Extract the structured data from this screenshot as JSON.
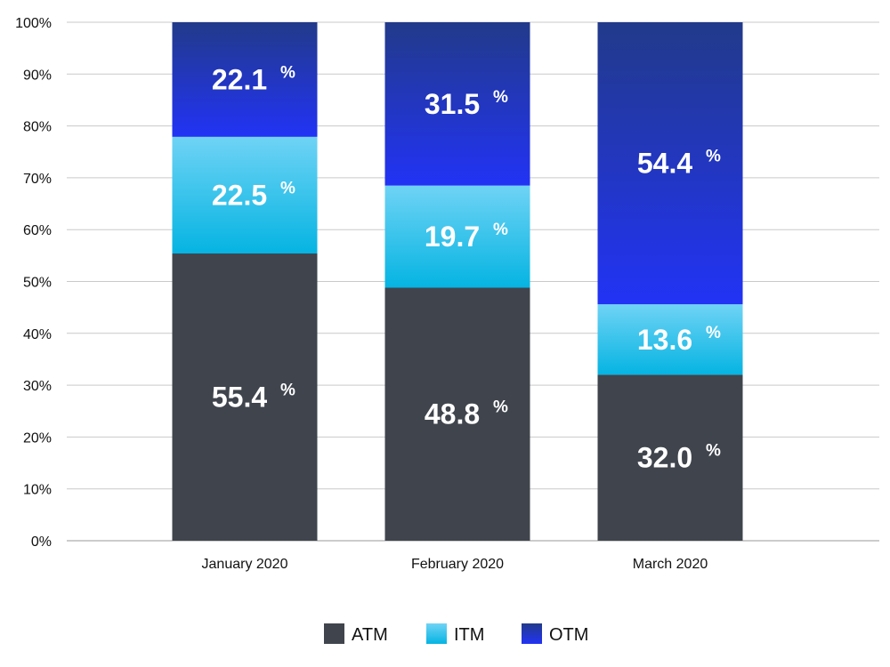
{
  "chart_data": {
    "type": "bar",
    "stacked": true,
    "categories": [
      "January 2020",
      "February 2020",
      "March 2020"
    ],
    "series": [
      {
        "name": "ATM",
        "values": [
          55.4,
          48.8,
          32.0
        ],
        "labels": [
          "55.4",
          "48.8",
          "32.0"
        ],
        "color": "#3f444d"
      },
      {
        "name": "ITM",
        "values": [
          22.5,
          19.7,
          13.6
        ],
        "labels": [
          "22.5",
          "19.7",
          "13.6"
        ],
        "color_top": "#6fd3f5",
        "color_bottom": "#05b4e2"
      },
      {
        "name": "OTM",
        "values": [
          22.1,
          31.5,
          54.4
        ],
        "labels": [
          "22.1",
          "31.5",
          "54.4"
        ],
        "color_top": "#223a8a",
        "color_bottom": "#2233f5"
      }
    ],
    "value_suffix": "%",
    "yticks": [
      "0%",
      "10%",
      "20%",
      "30%",
      "40%",
      "50%",
      "60%",
      "70%",
      "80%",
      "90%",
      "100%"
    ],
    "ylim": [
      0,
      100
    ],
    "grid": true,
    "legend": "bottom-center"
  }
}
